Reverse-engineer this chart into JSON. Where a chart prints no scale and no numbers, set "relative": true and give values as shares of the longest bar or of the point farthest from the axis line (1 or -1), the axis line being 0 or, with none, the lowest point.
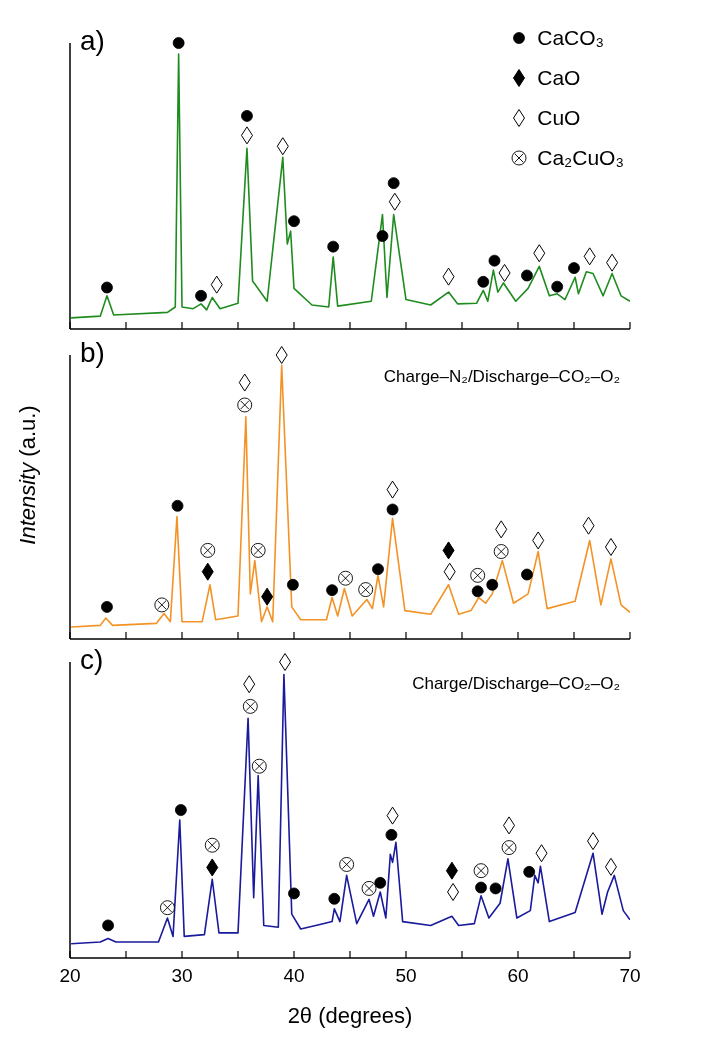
{
  "chart_data": [
    {
      "type": "line",
      "title": "a)",
      "relative": true,
      "xlim": [
        20,
        70
      ],
      "xticks": [
        20,
        {
          "value": 25,
          "label": null
        },
        30,
        {
          "value": 35,
          "label": null
        },
        40,
        {
          "value": 45,
          "label": null
        },
        50,
        {
          "value": 55,
          "label": null
        },
        60,
        {
          "value": 65,
          "label": null
        },
        70
      ],
      "tick_labels": false,
      "legend": "top right",
      "series": [
        {
          "color": "#1f8c1f",
          "x": [
            20.1,
            22.7,
            23.3,
            23.9,
            28.7,
            29.4,
            29.7,
            30.0,
            31.0,
            31.7,
            32.2,
            32.7,
            33.4,
            35.0,
            35.8,
            36.3,
            37.6,
            39.0,
            39.4,
            39.7,
            40.0,
            41.6,
            43.1,
            43.5,
            43.9,
            46.9,
            47.9,
            48.3,
            48.9,
            50.0,
            52.2,
            53.8,
            54.6,
            56.3,
            56.9,
            57.3,
            57.8,
            58.2,
            58.7,
            59.8,
            60.9,
            61.9,
            62.8,
            63.5,
            64.2,
            65.1,
            65.4,
            66.1,
            66.7,
            67.6,
            68.4,
            69.2,
            70.0
          ],
          "values": [
            0.039,
            0.045,
            0.116,
            0.049,
            0.058,
            0.077,
            0.961,
            0.077,
            0.071,
            0.088,
            0.067,
            0.11,
            0.071,
            0.09,
            0.632,
            0.168,
            0.097,
            0.6,
            0.297,
            0.342,
            0.142,
            0.084,
            0.077,
            0.252,
            0.08,
            0.097,
            0.4,
            0.11,
            0.4,
            0.103,
            0.084,
            0.129,
            0.088,
            0.09,
            0.135,
            0.097,
            0.206,
            0.129,
            0.161,
            0.097,
            0.142,
            0.219,
            0.116,
            0.123,
            0.103,
            0.181,
            0.123,
            0.2,
            0.194,
            0.116,
            0.194,
            0.116,
            0.097
          ]
        },
        {
          "type": "scatter",
          "name": "CaCO₃",
          "marker": "circle",
          "color": "#000000",
          "x": [
            23.3,
            29.7,
            31.7,
            35.8,
            40.0,
            43.5,
            47.9,
            48.9,
            56.9,
            57.9,
            60.8,
            63.5,
            65.0
          ],
          "values": [
            0.145,
            1.0,
            0.116,
            0.745,
            0.377,
            0.288,
            0.325,
            0.51,
            0.165,
            0.239,
            0.187,
            0.148,
            0.213
          ]
        },
        {
          "type": "scatter",
          "name": "CaO",
          "marker": "diamond",
          "color": "#000000"
        },
        {
          "type": "scatter",
          "name": "CuO",
          "marker": "diamond",
          "color": "#ffffff",
          "x": [
            33.1,
            35.8,
            39.0,
            49.0,
            53.8,
            58.8,
            61.9,
            66.4,
            68.4
          ],
          "values": [
            0.155,
            0.677,
            0.639,
            0.445,
            0.183,
            0.196,
            0.265,
            0.254,
            0.232
          ]
        },
        {
          "type": "scatter",
          "name": "Ca₂CuO₃",
          "marker": "cross",
          "color": "#ffffff"
        }
      ]
    },
    {
      "type": "line",
      "title": "b)",
      "subtitle": "Charge–N₂/Discharge–CO₂–O₂",
      "ylabel": "Intensity (a.u.)",
      "relative": true,
      "xlim": [
        20,
        70
      ],
      "xticks": [
        20,
        {
          "value": 25,
          "label": null
        },
        30,
        {
          "value": 35,
          "label": null
        },
        40,
        {
          "value": 45,
          "label": null
        },
        50,
        {
          "value": 55,
          "label": null
        },
        60,
        {
          "value": 65,
          "label": null
        },
        70
      ],
      "tick_labels": false,
      "series": [
        {
          "color": "#f39325",
          "x": [
            20.1,
            22.7,
            23.2,
            23.8,
            27.7,
            28.4,
            28.96,
            29.55,
            30.0,
            31.8,
            32.5,
            33.0,
            35.0,
            35.7,
            36.1,
            36.5,
            37.1,
            37.6,
            38.1,
            38.9,
            39.8,
            40.6,
            42.9,
            43.4,
            43.9,
            44.5,
            45.2,
            46.5,
            47.0,
            47.5,
            48.0,
            48.8,
            49.9,
            52.2,
            53.8,
            54.7,
            55.8,
            56.5,
            57.1,
            57.7,
            58.6,
            59.6,
            60.9,
            61.8,
            62.6,
            65.1,
            66.4,
            67.4,
            68.3,
            69.2,
            70.0
          ],
          "values": [
            0.042,
            0.048,
            0.074,
            0.048,
            0.055,
            0.09,
            0.061,
            0.431,
            0.061,
            0.061,
            0.191,
            0.068,
            0.081,
            0.782,
            0.159,
            0.276,
            0.061,
            0.113,
            0.061,
            0.964,
            0.113,
            0.068,
            0.068,
            0.146,
            0.081,
            0.178,
            0.081,
            0.139,
            0.107,
            0.224,
            0.113,
            0.425,
            0.1,
            0.087,
            0.191,
            0.087,
            0.1,
            0.146,
            0.126,
            0.159,
            0.276,
            0.126,
            0.159,
            0.308,
            0.107,
            0.133,
            0.347,
            0.12,
            0.282,
            0.12,
            0.094
          ]
        },
        {
          "type": "scatter",
          "marker": "circle",
          "color": "#000000",
          "x": [
            23.3,
            29.6,
            39.9,
            43.4,
            47.5,
            48.8,
            56.4,
            57.7,
            60.8
          ],
          "values": [
            0.113,
            0.469,
            0.191,
            0.172,
            0.246,
            0.456,
            0.168,
            0.191,
            0.227
          ]
        },
        {
          "type": "scatter",
          "marker": "diamond",
          "color": "#000000",
          "x": [
            32.3,
            37.6,
            53.8
          ],
          "values": [
            0.237,
            0.149,
            0.312
          ]
        },
        {
          "type": "scatter",
          "marker": "diamond",
          "color": "#ffffff",
          "x": [
            35.6,
            38.9,
            48.8,
            53.9,
            58.5,
            61.8,
            66.3,
            68.3
          ],
          "values": [
            0.903,
            1.0,
            0.526,
            0.237,
            0.386,
            0.347,
            0.399,
            0.324
          ]
        },
        {
          "type": "scatter",
          "marker": "cross",
          "color": "#ffffff",
          "x": [
            28.2,
            32.3,
            35.6,
            36.8,
            44.6,
            46.4,
            56.4,
            58.5
          ],
          "values": [
            0.12,
            0.312,
            0.824,
            0.312,
            0.214,
            0.174,
            0.224,
            0.308
          ]
        }
      ]
    },
    {
      "type": "line",
      "title": "c)",
      "subtitle": "Charge/Discharge–CO₂–O₂",
      "xlabel": "2θ (degrees)",
      "relative": true,
      "xlim": [
        20,
        70
      ],
      "xticks": [
        20,
        {
          "value": 25,
          "label": null
        },
        30,
        {
          "value": 35,
          "label": null
        },
        40,
        {
          "value": 45,
          "label": null
        },
        50,
        {
          "value": 55,
          "label": null
        },
        60,
        {
          "value": 65,
          "label": null
        },
        70
      ],
      "tick_labels": "x",
      "series": [
        {
          "color": "#1a1a9c",
          "x": [
            20.1,
            22.7,
            23.4,
            24.1,
            27.9,
            28.7,
            29.2,
            29.8,
            30.2,
            32.0,
            32.7,
            33.3,
            35.0,
            35.9,
            36.4,
            36.8,
            37.3,
            38.6,
            39.1,
            39.8,
            40.6,
            42.6,
            43.4,
            43.6,
            44.1,
            44.7,
            45.6,
            46.7,
            47.1,
            47.7,
            48.2,
            48.6,
            48.8,
            49.1,
            49.7,
            52.2,
            54.1,
            54.7,
            56.1,
            56.7,
            57.4,
            58.4,
            59.1,
            59.9,
            61.1,
            61.5,
            61.8,
            62.0,
            62.8,
            65.1,
            66.7,
            67.5,
            68.0,
            68.6,
            69.4,
            70.0
          ],
          "values": [
            0.048,
            0.054,
            0.066,
            0.054,
            0.054,
            0.135,
            0.073,
            0.466,
            0.073,
            0.079,
            0.266,
            0.085,
            0.085,
            0.81,
            0.204,
            0.616,
            0.11,
            0.104,
            0.958,
            0.148,
            0.098,
            0.116,
            0.123,
            0.166,
            0.123,
            0.279,
            0.116,
            0.198,
            0.141,
            0.223,
            0.135,
            0.35,
            0.323,
            0.391,
            0.123,
            0.11,
            0.141,
            0.11,
            0.116,
            0.21,
            0.135,
            0.185,
            0.335,
            0.135,
            0.16,
            0.279,
            0.254,
            0.31,
            0.123,
            0.154,
            0.354,
            0.148,
            0.223,
            0.279,
            0.16,
            0.129
          ]
        },
        {
          "type": "scatter",
          "marker": "circle",
          "color": "#000000",
          "x": [
            23.4,
            29.9,
            40.0,
            43.6,
            47.7,
            48.7,
            56.7,
            58.0,
            61.0
          ],
          "values": [
            0.11,
            0.5,
            0.218,
            0.2,
            0.254,
            0.416,
            0.238,
            0.235,
            0.291
          ]
        },
        {
          "type": "scatter",
          "marker": "diamond",
          "color": "#000000",
          "x": [
            32.7,
            54.1
          ],
          "values": [
            0.306,
            0.295
          ]
        },
        {
          "type": "scatter",
          "marker": "diamond",
          "color": "#ffffff",
          "x": [
            36.0,
            39.2,
            48.8,
            54.2,
            59.2,
            62.1,
            66.7,
            68.3
          ],
          "values": [
            0.925,
            1.0,
            0.481,
            0.223,
            0.448,
            0.354,
            0.395,
            0.308
          ]
        },
        {
          "type": "scatter",
          "marker": "cross",
          "color": "#ffffff",
          "x": [
            28.7,
            32.7,
            36.1,
            36.9,
            44.7,
            46.7,
            56.7,
            59.2
          ],
          "values": [
            0.17,
            0.381,
            0.85,
            0.648,
            0.316,
            0.235,
            0.295,
            0.373
          ]
        }
      ]
    }
  ]
}
